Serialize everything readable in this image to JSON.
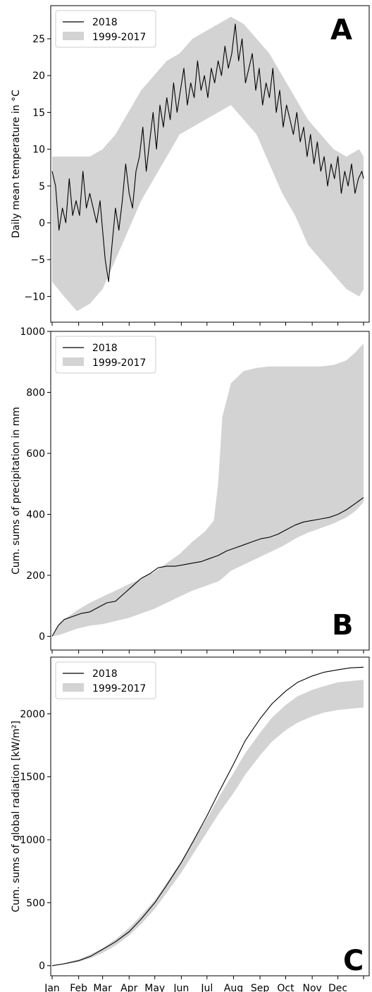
{
  "figure": {
    "month_labels": [
      "Jan",
      "Feb",
      "Mar",
      "Apr",
      "May",
      "Jun",
      "Jul",
      "Aug",
      "Sep",
      "Oct",
      "Nov",
      "Dec"
    ]
  },
  "chart_data": [
    {
      "panel": "A",
      "type": "line",
      "ylabel": "Daily mean temperature in °C",
      "yticks": [
        -10,
        -5,
        0,
        5,
        10,
        15,
        20,
        25
      ],
      "ylim": [
        -13.5,
        29.5
      ],
      "x_domain": [
        1,
        365
      ],
      "legend": {
        "position": "top-left",
        "entries": [
          "2018",
          "1999-2017"
        ]
      },
      "band": {
        "name": "1999-2017",
        "color": "#d3d3d3",
        "day": [
          1,
          15,
          30,
          45,
          60,
          75,
          90,
          105,
          120,
          135,
          150,
          165,
          180,
          195,
          210,
          225,
          240,
          255,
          270,
          285,
          300,
          315,
          330,
          345,
          360,
          365
        ],
        "upper": [
          9,
          9,
          9,
          9,
          10,
          12,
          15,
          18,
          20,
          22,
          23,
          25,
          26,
          27,
          28,
          27,
          25,
          23,
          20,
          17,
          14,
          12,
          10,
          9,
          10,
          9
        ],
        "lower": [
          -8,
          -10,
          -12,
          -11,
          -9,
          -5,
          -1,
          3,
          6,
          9,
          12,
          13,
          14,
          15,
          16,
          14,
          12,
          8,
          4,
          1,
          -3,
          -5,
          -7,
          -9,
          -10,
          -9
        ]
      },
      "series": [
        {
          "name": "2018",
          "color": "#000000",
          "day": [
            1,
            5,
            9,
            13,
            17,
            21,
            25,
            29,
            33,
            37,
            41,
            45,
            49,
            53,
            57,
            60,
            63,
            67,
            71,
            75,
            79,
            83,
            87,
            91,
            95,
            99,
            103,
            107,
            111,
            115,
            119,
            123,
            127,
            131,
            135,
            139,
            143,
            147,
            151,
            155,
            159,
            163,
            167,
            171,
            175,
            179,
            183,
            187,
            191,
            195,
            199,
            203,
            207,
            211,
            215,
            219,
            223,
            227,
            231,
            235,
            239,
            243,
            247,
            251,
            255,
            259,
            263,
            267,
            271,
            275,
            279,
            283,
            287,
            291,
            295,
            299,
            303,
            307,
            311,
            315,
            319,
            323,
            327,
            331,
            335,
            339,
            343,
            347,
            351,
            355,
            359,
            363,
            365
          ],
          "values": [
            7,
            5,
            -1,
            2,
            0,
            6,
            1,
            3,
            1,
            7,
            2,
            4,
            2,
            0,
            3,
            -1,
            -5,
            -8,
            -3,
            2,
            -1,
            3,
            8,
            4,
            2,
            7,
            9,
            13,
            7,
            11,
            15,
            10,
            16,
            13,
            17,
            14,
            19,
            15,
            18,
            21,
            16,
            19,
            17,
            22,
            18,
            20,
            17,
            21,
            19,
            22,
            20,
            24,
            21,
            23,
            27,
            22,
            25,
            19,
            21,
            23,
            18,
            21,
            16,
            19,
            17,
            21,
            15,
            18,
            13,
            16,
            14,
            12,
            15,
            11,
            13,
            9,
            12,
            8,
            11,
            7,
            9,
            5,
            8,
            6,
            9,
            4,
            7,
            5,
            8,
            4,
            6,
            7,
            6
          ]
        }
      ]
    },
    {
      "panel": "B",
      "type": "line",
      "ylabel": "Cum. sums of precipitation in mm",
      "yticks": [
        0,
        200,
        400,
        600,
        800,
        1000
      ],
      "ylim": [
        -45,
        1000
      ],
      "x_domain": [
        1,
        365
      ],
      "legend": {
        "position": "top-left",
        "entries": [
          "2018",
          "1999-2017"
        ]
      },
      "band": {
        "name": "1999-2017",
        "color": "#d3d3d3",
        "day": [
          1,
          10,
          20,
          30,
          45,
          60,
          75,
          90,
          105,
          120,
          135,
          150,
          165,
          180,
          190,
          195,
          200,
          210,
          225,
          240,
          255,
          270,
          285,
          300,
          315,
          330,
          345,
          355,
          365
        ],
        "upper": [
          0,
          45,
          65,
          85,
          110,
          130,
          150,
          170,
          190,
          210,
          240,
          270,
          310,
          345,
          380,
          500,
          720,
          830,
          870,
          880,
          885,
          885,
          885,
          885,
          885,
          890,
          905,
          930,
          960
        ],
        "lower": [
          0,
          5,
          15,
          25,
          35,
          40,
          50,
          60,
          75,
          90,
          110,
          130,
          150,
          165,
          175,
          180,
          190,
          215,
          235,
          255,
          275,
          295,
          320,
          340,
          355,
          370,
          390,
          410,
          440
        ]
      },
      "series": [
        {
          "name": "2018",
          "color": "#000000",
          "day": [
            1,
            8,
            15,
            25,
            35,
            45,
            55,
            65,
            75,
            85,
            95,
            105,
            115,
            125,
            135,
            145,
            155,
            165,
            175,
            185,
            195,
            205,
            215,
            225,
            235,
            245,
            255,
            265,
            275,
            285,
            295,
            305,
            315,
            325,
            335,
            345,
            355,
            365
          ],
          "values": [
            0,
            35,
            55,
            65,
            75,
            80,
            95,
            110,
            115,
            140,
            165,
            190,
            205,
            225,
            230,
            230,
            235,
            240,
            245,
            255,
            265,
            280,
            290,
            300,
            310,
            320,
            325,
            335,
            350,
            365,
            375,
            380,
            385,
            390,
            400,
            415,
            435,
            455
          ]
        }
      ]
    },
    {
      "panel": "C",
      "type": "line",
      "ylabel": "Cum. sums of global radiation [kW/m²]",
      "yticks": [
        0,
        500,
        1000,
        1500,
        2000
      ],
      "ylim": [
        -80,
        2450
      ],
      "x_domain": [
        1,
        365
      ],
      "xticks": [
        "Jan",
        "Feb",
        "Mar",
        "Apr",
        "May",
        "Jun",
        "Jul",
        "Aug",
        "Sep",
        "Oct",
        "Nov",
        "Dec"
      ],
      "legend": {
        "position": "top-left",
        "entries": [
          "2018",
          "1999-2017"
        ]
      },
      "band": {
        "name": "1999-2017",
        "color": "#d3d3d3",
        "day": [
          1,
          15,
          32,
          46,
          60,
          75,
          91,
          105,
          121,
          135,
          152,
          166,
          182,
          196,
          213,
          227,
          244,
          258,
          274,
          288,
          305,
          319,
          335,
          350,
          365
        ],
        "upper": [
          0,
          20,
          50,
          90,
          140,
          210,
          300,
          400,
          520,
          660,
          830,
          990,
          1170,
          1340,
          1530,
          1690,
          1850,
          1970,
          2070,
          2140,
          2190,
          2220,
          2250,
          2260,
          2270
        ],
        "lower": [
          0,
          10,
          30,
          60,
          100,
          160,
          240,
          330,
          450,
          580,
          740,
          890,
          1060,
          1210,
          1370,
          1520,
          1670,
          1780,
          1870,
          1930,
          1980,
          2010,
          2030,
          2040,
          2050
        ]
      },
      "series": [
        {
          "name": "2018",
          "color": "#000000",
          "day": [
            1,
            15,
            32,
            46,
            60,
            75,
            91,
            105,
            121,
            135,
            152,
            166,
            182,
            196,
            213,
            227,
            244,
            258,
            274,
            288,
            305,
            319,
            335,
            350,
            365
          ],
          "values": [
            0,
            15,
            40,
            75,
            130,
            190,
            270,
            370,
            500,
            640,
            820,
            990,
            1190,
            1380,
            1600,
            1790,
            1960,
            2080,
            2180,
            2250,
            2300,
            2330,
            2350,
            2365,
            2370
          ]
        }
      ]
    }
  ]
}
